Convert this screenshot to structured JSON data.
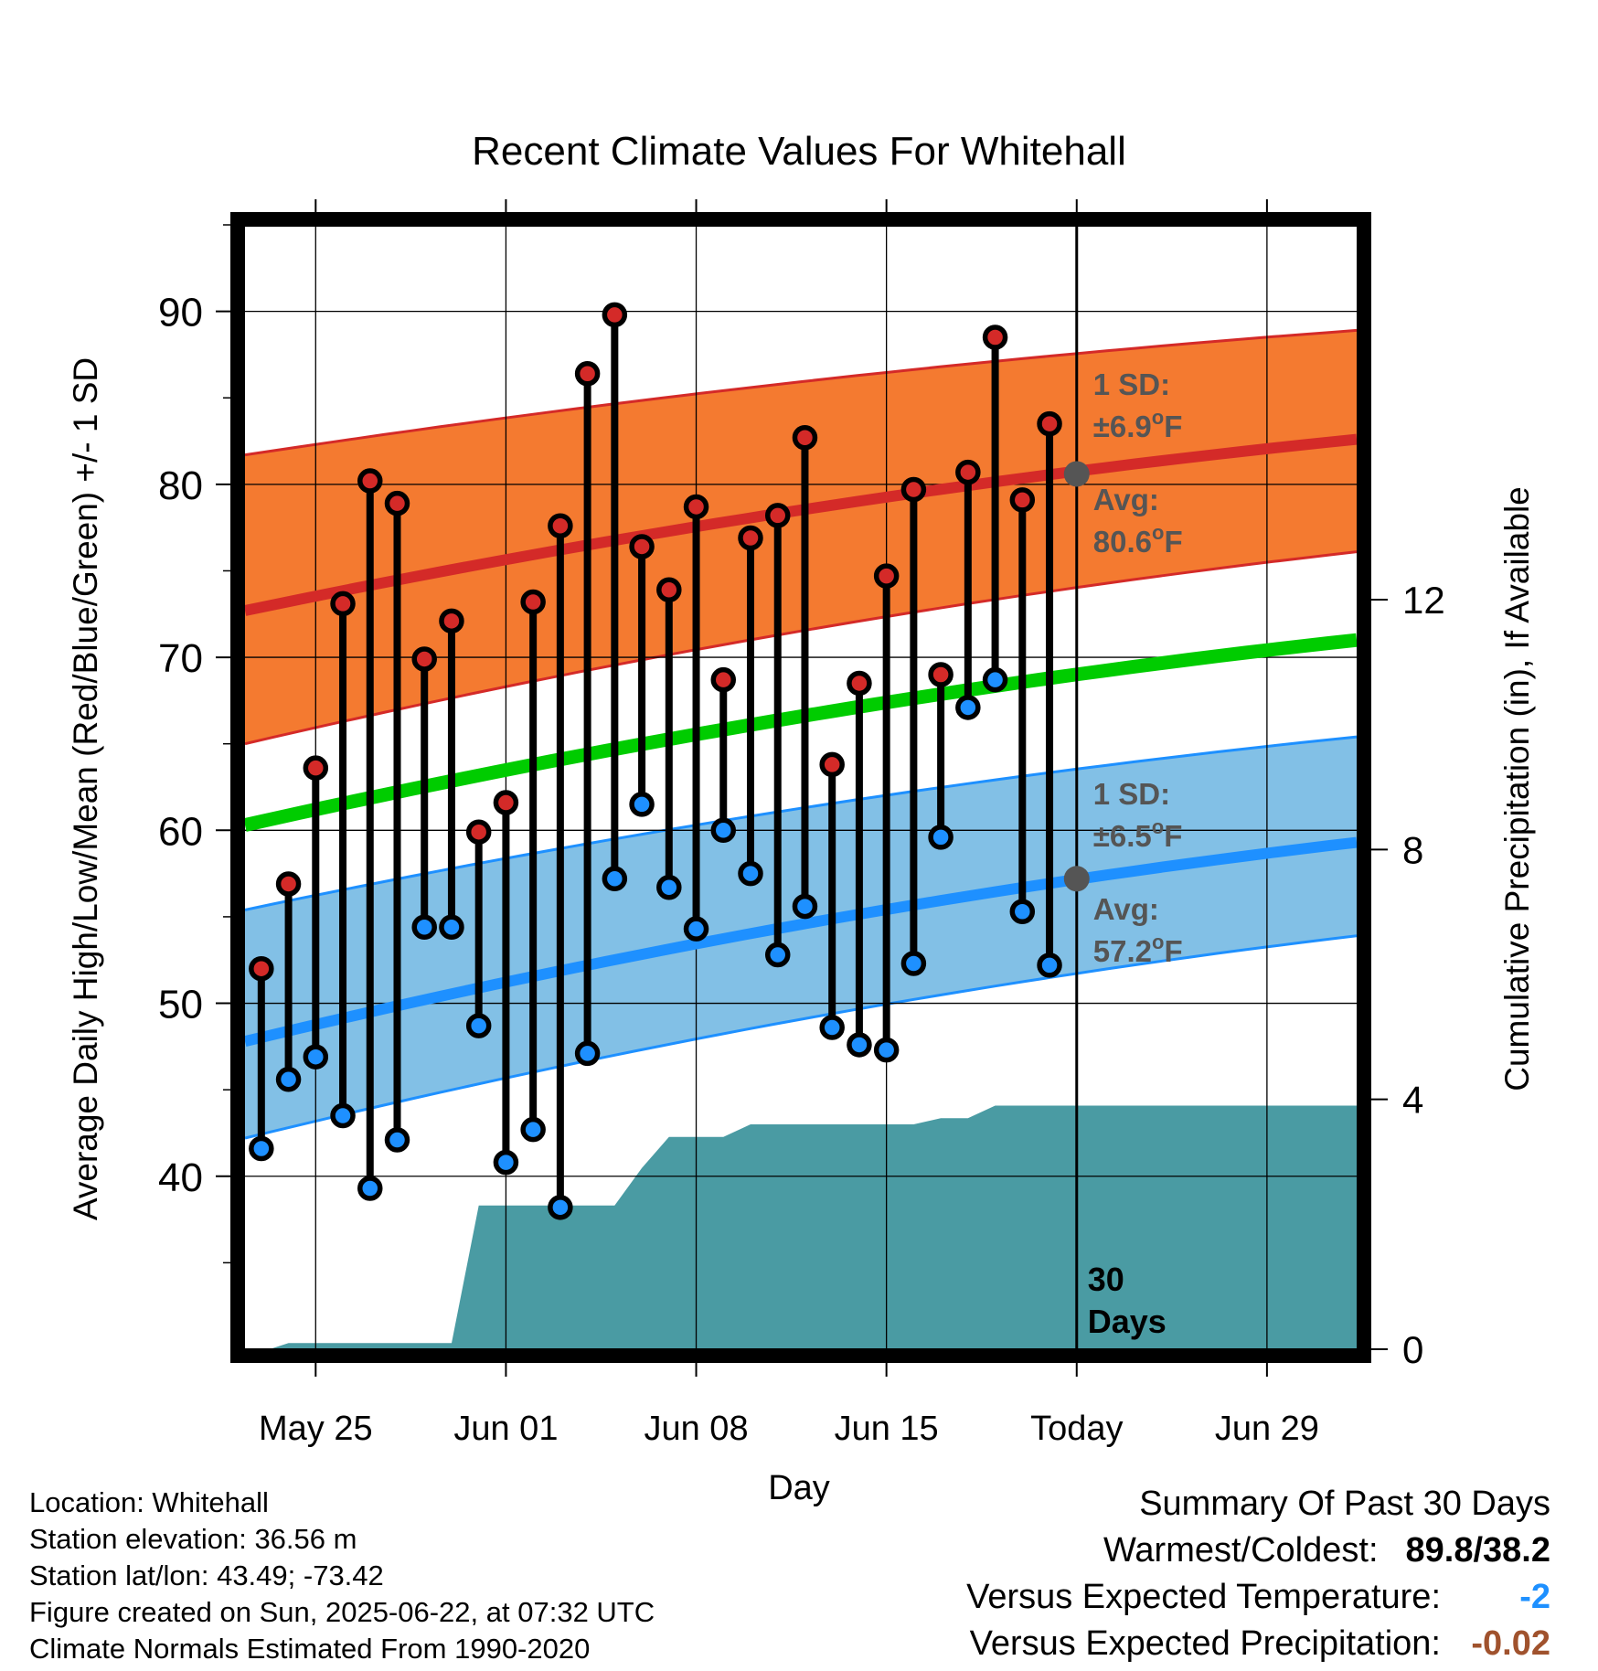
{
  "chart_data": {
    "type": "line",
    "title": "Recent Climate Values For Whitehall",
    "xlabel": "Day",
    "ylabel": "Average Daily High/Low/Mean (Red/Blue/Green) +/- 1 SD",
    "y2label": "Cumulative Precipitation (in), If Available",
    "ylim": [
      30,
      95
    ],
    "y2lim": [
      0,
      18
    ],
    "yticks": [
      40,
      50,
      60,
      70,
      80,
      90
    ],
    "y2ticks": [
      0,
      4,
      8,
      12
    ],
    "xticks": [
      {
        "day": 3,
        "label": "May 25"
      },
      {
        "day": 10,
        "label": "Jun 01"
      },
      {
        "day": 17,
        "label": "Jun 08"
      },
      {
        "day": 24,
        "label": "Jun 15"
      },
      {
        "day": 31,
        "label": "Today"
      },
      {
        "day": 38,
        "label": "Jun 29"
      }
    ],
    "xlim": [
      0.4,
      41.3
    ],
    "today_day": 31,
    "grid": true,
    "colors": {
      "high_band": "#f47a30",
      "high_avg": "#d42a28",
      "low_band": "#82c0e6",
      "low_avg": "#1e90ff",
      "mean": "#00cc00",
      "precip": "#4a9ba3",
      "high_marker": "#d42a28",
      "low_marker": "#1e90ff",
      "today_marker": "#555555",
      "annotation": "#555555"
    },
    "normals": {
      "day": [
        0.4,
        41.3
      ],
      "high_avg": [
        72.7,
        82.6
      ],
      "high_upper": [
        81.7,
        88.9
      ],
      "high_lower": [
        65.0,
        76.1
      ],
      "low_avg": [
        47.8,
        59.3
      ],
      "low_upper": [
        55.4,
        65.4
      ],
      "low_lower": [
        42.2,
        53.9
      ],
      "mean": [
        60.3,
        71.0
      ]
    },
    "observations": {
      "day": [
        1,
        2,
        3,
        4,
        5,
        6,
        7,
        8,
        9,
        10,
        11,
        12,
        13,
        14,
        15,
        16,
        17,
        18,
        19,
        20,
        21,
        22,
        23,
        24,
        25,
        26,
        27,
        28,
        29,
        30
      ],
      "high": [
        52.0,
        56.9,
        63.6,
        73.1,
        80.2,
        78.9,
        69.9,
        72.1,
        59.9,
        61.6,
        73.2,
        77.6,
        86.4,
        89.8,
        76.4,
        73.9,
        78.7,
        68.7,
        76.9,
        78.2,
        82.7,
        63.8,
        68.5,
        74.7,
        79.7,
        69.0,
        80.7,
        88.5,
        79.1,
        83.5
      ],
      "low": [
        41.6,
        45.6,
        46.9,
        43.5,
        39.3,
        42.1,
        54.4,
        54.4,
        48.7,
        40.8,
        42.7,
        38.2,
        47.1,
        57.2,
        61.5,
        56.7,
        54.3,
        60.0,
        57.5,
        52.8,
        55.6,
        48.6,
        47.6,
        47.3,
        52.3,
        59.6,
        67.1,
        68.7,
        55.3,
        52.2
      ]
    },
    "precip": {
      "day": [
        0.4,
        1.3,
        2.0,
        3.0,
        4.0,
        5.0,
        6.0,
        7.0,
        8.0,
        9.0,
        10.0,
        11.0,
        12.0,
        13.0,
        14.0,
        15.0,
        16.0,
        17.0,
        18.0,
        19.0,
        20.0,
        21.0,
        22.0,
        23.0,
        24.0,
        25.0,
        26.0,
        27.0,
        28.0,
        29.0,
        30.0,
        31.0,
        41.3
      ],
      "value": [
        0,
        0,
        0.1,
        0.1,
        0.1,
        0.1,
        0.1,
        0.1,
        0.1,
        2.3,
        2.3,
        2.3,
        2.3,
        2.3,
        2.3,
        2.9,
        3.4,
        3.4,
        3.4,
        3.6,
        3.6,
        3.6,
        3.6,
        3.6,
        3.6,
        3.6,
        3.7,
        3.7,
        3.9,
        3.9,
        3.9,
        3.9,
        3.9
      ]
    },
    "annotations": {
      "high_sd": {
        "line1": "1 SD:",
        "prefix": "±6.9",
        "deg": "o",
        "unit": "F",
        "avg_label": "Avg:",
        "avg_value": "80.6",
        "avg_deg": "o",
        "avg_unit": "F",
        "avg": 80.6
      },
      "low_sd": {
        "line1": "1 SD:",
        "prefix": "±6.5",
        "deg": "o",
        "unit": "F",
        "avg_label": "Avg:",
        "avg_value": "57.2",
        "avg_deg": "o",
        "avg_unit": "F",
        "avg": 57.2
      },
      "days": {
        "line1": "30",
        "line2": "Days"
      }
    }
  },
  "footer": {
    "location": "Location: Whitehall",
    "elevation": "Station elevation: 36.56 m",
    "latlon": "Station lat/lon: 43.49; -73.42",
    "created": "Figure created on Sun, 2025-06-22, at 07:32 UTC",
    "normals": "Climate Normals Estimated From 1990-2020"
  },
  "summary": {
    "title": "Summary Of Past 30 Days",
    "warm_cold_label": "Warmest/Coldest:",
    "warm_cold_value": "89.8/38.2",
    "temp_label": "Versus Expected Temperature:",
    "temp_value": "-2",
    "precip_label": "Versus Expected Precipitation:",
    "precip_value": "-0.02"
  }
}
